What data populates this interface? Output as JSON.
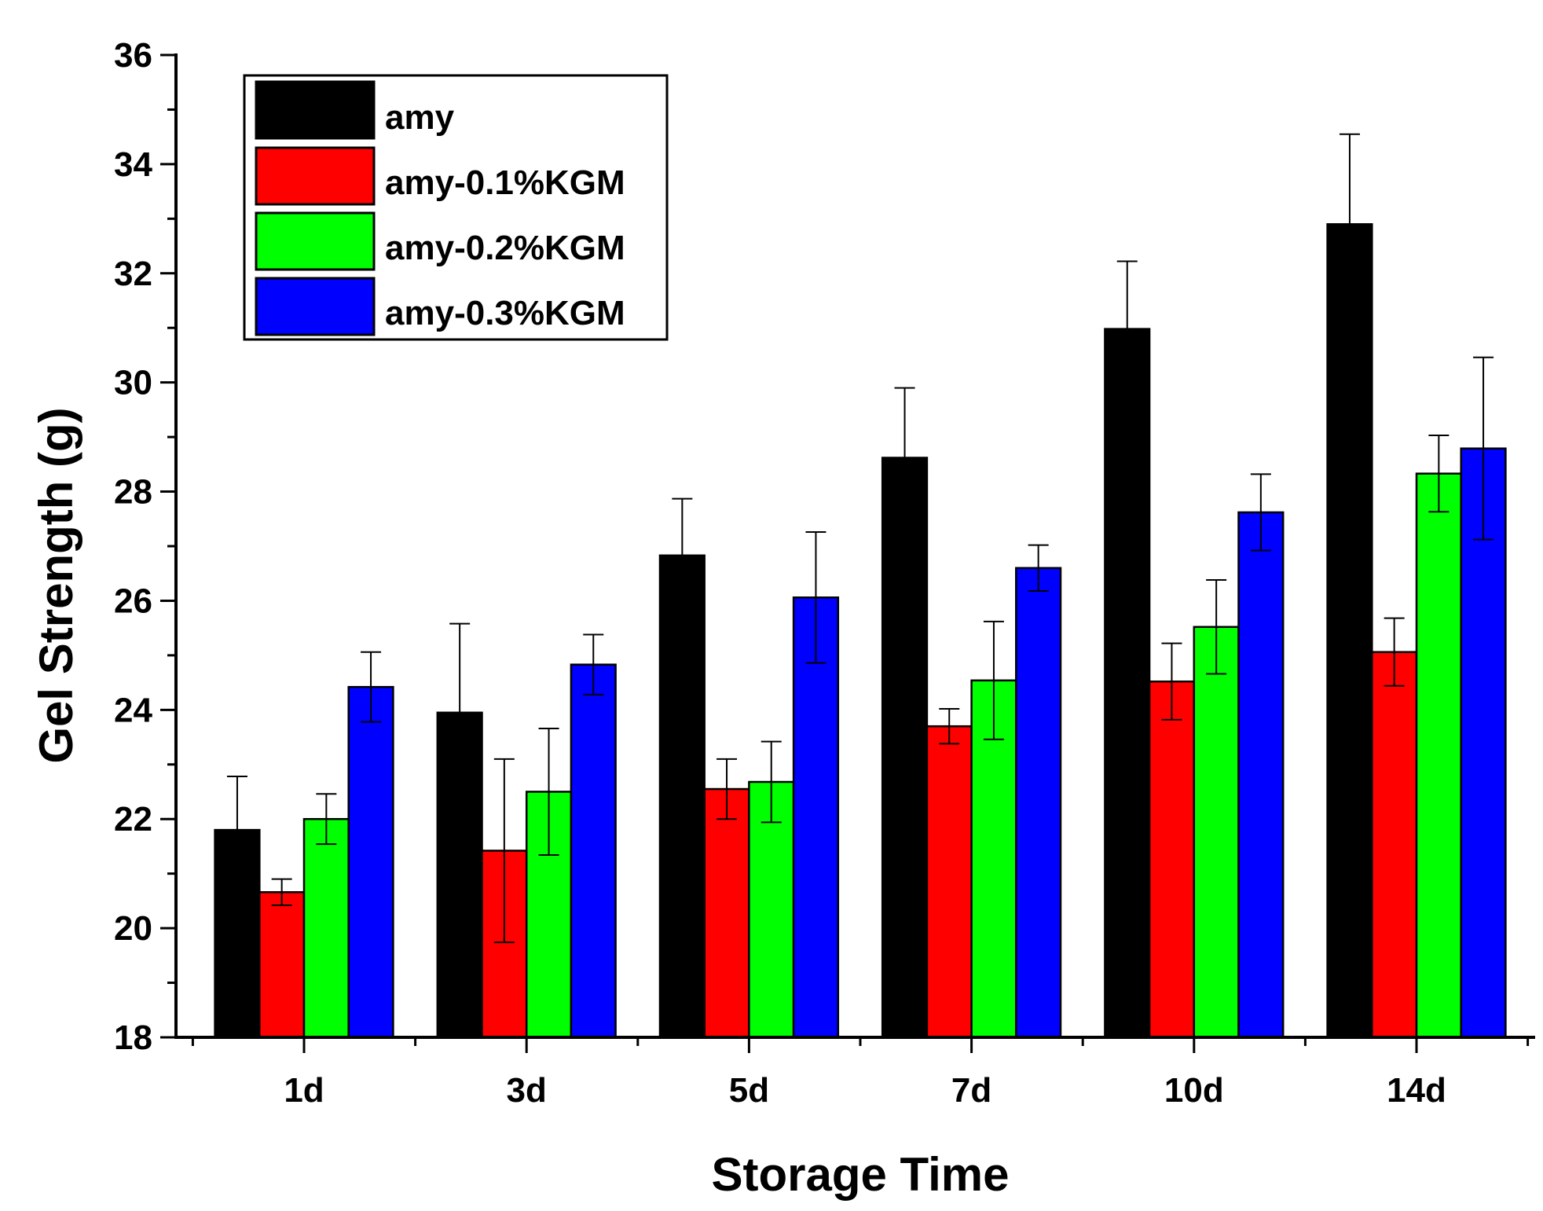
{
  "chart_data": {
    "type": "bar",
    "title": "",
    "xlabel": "Storage Time",
    "ylabel": "Gel Strength (g)",
    "ylim": [
      18,
      36
    ],
    "yticks": [
      "18",
      "20",
      "22",
      "24",
      "26",
      "28",
      "30",
      "32",
      "34",
      "36"
    ],
    "categories": [
      "1d",
      "3d",
      "5d",
      "7d",
      "10d",
      "14d"
    ],
    "legend_position": "top-left",
    "series": [
      {
        "name": "amy",
        "color": "#000000",
        "values": [
          21.8,
          23.95,
          26.83,
          28.62,
          30.98,
          32.9
        ],
        "errors": [
          0.98,
          1.63,
          1.04,
          1.28,
          1.24,
          1.65
        ]
      },
      {
        "name": "amy-0.1%KGM",
        "color": "#ff0000",
        "values": [
          20.66,
          21.42,
          22.55,
          23.7,
          24.52,
          25.06
        ],
        "errors": [
          0.24,
          1.68,
          0.55,
          0.32,
          0.7,
          0.62
        ]
      },
      {
        "name": "amy-0.2%KGM",
        "color": "#00ff00",
        "values": [
          22.0,
          22.5,
          22.68,
          24.54,
          25.52,
          28.33
        ],
        "errors": [
          0.46,
          1.16,
          0.74,
          1.08,
          0.86,
          0.7
        ]
      },
      {
        "name": "amy-0.3%KGM",
        "color": "#0000ff",
        "values": [
          24.42,
          24.83,
          26.06,
          26.6,
          27.62,
          28.79
        ],
        "errors": [
          0.64,
          0.55,
          1.2,
          0.42,
          0.7,
          1.67
        ]
      }
    ]
  }
}
